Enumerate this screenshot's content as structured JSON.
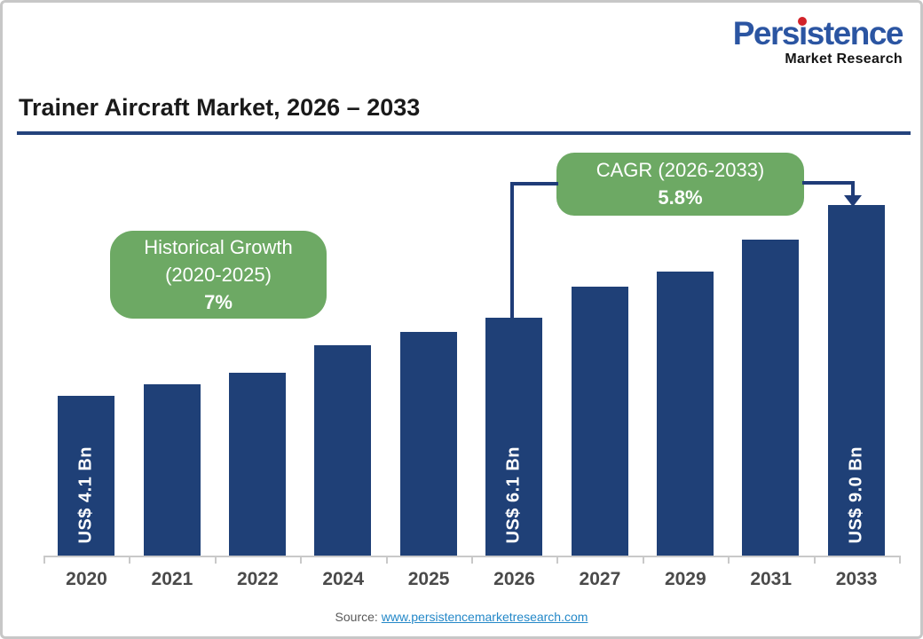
{
  "logo": {
    "brand_pre": "Pers",
    "brand_i": "i",
    "brand_post": "stence",
    "brand": "Persistence",
    "subtitle": "Market Research"
  },
  "header": {
    "title": "Trainer Aircraft Market, 2026 – 2033"
  },
  "callouts": {
    "historical": {
      "line1": "Historical Growth",
      "line2": "(2020-2025)",
      "value": "7%"
    },
    "cagr": {
      "line1": "CAGR (2026-2033)",
      "value": "5.8%"
    }
  },
  "chart_data": {
    "type": "bar",
    "title": "Trainer Aircraft Market, 2026 – 2033",
    "categories": [
      "2020",
      "2021",
      "2022",
      "2024",
      "2025",
      "2026",
      "2027",
      "2029",
      "2031",
      "2033"
    ],
    "values": [
      4.1,
      4.4,
      4.7,
      5.4,
      5.75,
      6.1,
      6.9,
      7.3,
      8.1,
      9.0
    ],
    "value_unit": "US$ Bn",
    "bar_labels": [
      "US$ 4.1 Bn",
      "",
      "",
      "",
      "",
      "US$ 6.1 Bn",
      "",
      "",
      "",
      "US$ 9.0 Bn"
    ],
    "annotations": [
      "Historical Growth (2020-2025) 7%",
      "CAGR (2026-2033) 5.8%"
    ],
    "xlabel": "",
    "ylabel": "",
    "ylim": [
      0,
      9.5
    ],
    "grid": false,
    "legend": false
  },
  "footer": {
    "source_label": "Source:",
    "source_link": "www.persistencemarketresearch.com"
  },
  "colors": {
    "bar": "#1F4077",
    "accent_green": "#6DA964",
    "connector_navy": "#1F3C78",
    "title_underline": "#24437C",
    "logo_blue": "#2B55A2",
    "logo_red": "#D2232A",
    "link_blue": "#2488C8",
    "axis_gray": "#C9C9C9",
    "year_label_gray": "#4A4A4A"
  }
}
